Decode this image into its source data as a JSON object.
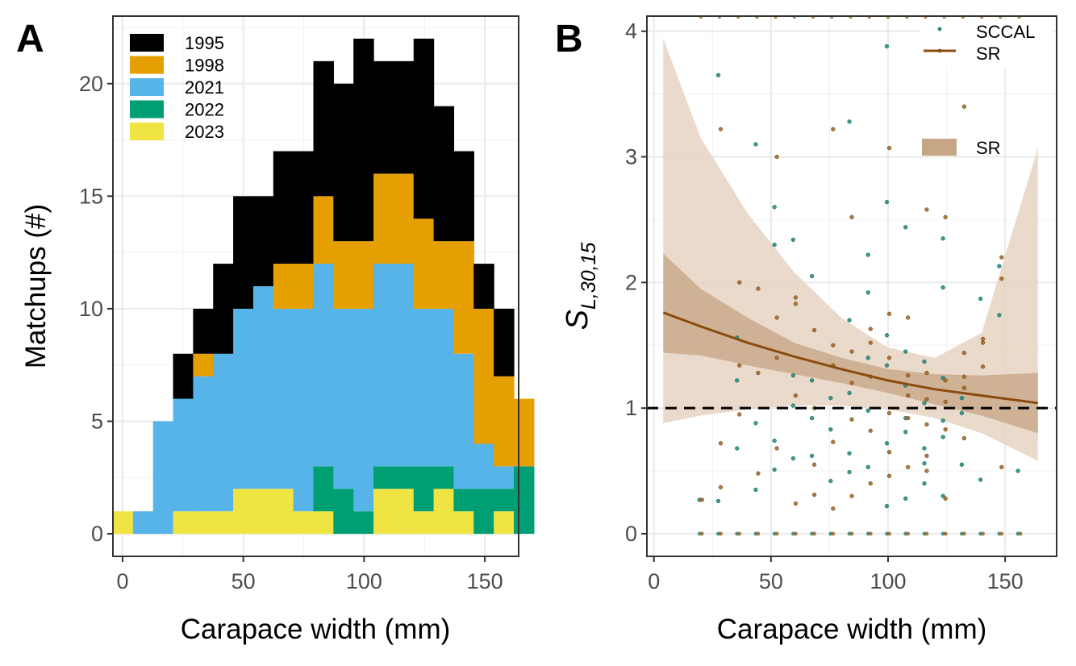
{
  "figure": {
    "colors": {
      "y1995": "#000000",
      "y1998": "#E69F00",
      "y2021": "#56B4E9",
      "y2022": "#009E73",
      "y2023": "#F0E442",
      "sccal": "#1b8a7a",
      "sr": "#a0621d",
      "sr_line": "#8b4a0e",
      "sr_band_outer": "#e6d4c2",
      "sr_band_inner": "#c3a17d",
      "grid": "#ebebeb"
    }
  },
  "chart_data": [
    {
      "panel_label": "A",
      "type": "bar",
      "stacked": true,
      "xlabel": "Carapace width (mm)",
      "ylabel": "Matchups (#)",
      "xlim": [
        -4,
        164
      ],
      "ylim": [
        -1,
        23
      ],
      "xticks": [
        0,
        50,
        100,
        150
      ],
      "yticks": [
        0,
        5,
        10,
        15,
        20
      ],
      "grid": true,
      "legend_position": "top-left",
      "bin_width": 8.3,
      "bin_start": -4,
      "series": [
        {
          "name": "2023",
          "color_key": "y2023",
          "values": [
            1,
            0,
            0,
            1,
            1,
            1,
            2,
            2,
            2,
            1,
            1,
            0,
            0,
            2,
            2,
            1,
            2,
            1,
            0,
            1,
            0
          ]
        },
        {
          "name": "2022",
          "color_key": "y2022",
          "values": [
            0,
            0,
            0,
            0,
            0,
            0,
            0,
            0,
            0,
            0,
            2,
            2,
            1,
            1,
            1,
            2,
            1,
            1,
            2,
            1,
            3
          ]
        },
        {
          "name": "2021",
          "color_key": "y2021",
          "values": [
            0,
            1,
            5,
            5,
            6,
            7,
            8,
            9,
            8,
            9,
            9,
            8,
            9,
            9,
            9,
            7,
            7,
            6,
            2,
            1,
            0
          ]
        },
        {
          "name": "1998",
          "color_key": "y1998",
          "values": [
            0,
            0,
            0,
            0,
            1,
            0,
            0,
            0,
            2,
            2,
            3,
            3,
            3,
            4,
            4,
            4,
            3,
            5,
            6,
            4,
            3
          ]
        },
        {
          "name": "1995",
          "color_key": "y1995",
          "values": [
            0,
            0,
            0,
            2,
            2,
            4,
            5,
            4,
            5,
            5,
            6,
            7,
            9,
            5,
            5,
            8,
            6,
            4,
            2,
            3,
            0
          ]
        }
      ],
      "legend": [
        "1995",
        "1998",
        "2021",
        "2022",
        "2023"
      ]
    },
    {
      "panel_label": "B",
      "type": "scatter",
      "xlabel": "Carapace width (mm)",
      "ylabel": "S",
      "ylabel_subscript": "L,30,15",
      "xlim": [
        -3,
        172
      ],
      "ylim": [
        -0.18,
        4.12
      ],
      "xticks": [
        0,
        50,
        100,
        150
      ],
      "yticks": [
        0,
        1,
        2,
        3,
        4
      ],
      "grid": true,
      "reference_line": {
        "y": 1,
        "style": "dashed"
      },
      "legend_position": "top-right",
      "legend": {
        "sccal": "SCCAL",
        "sr_line": "SR",
        "sr_band": "SR"
      },
      "sr_fit": {
        "x": [
          4,
          20,
          40,
          60,
          80,
          100,
          120,
          140,
          164
        ],
        "y": [
          1.76,
          1.65,
          1.52,
          1.41,
          1.31,
          1.22,
          1.15,
          1.1,
          1.04
        ],
        "inner_lower": [
          1.44,
          1.42,
          1.34,
          1.27,
          1.2,
          1.12,
          1.03,
          0.94,
          0.8
        ],
        "inner_upper": [
          2.23,
          1.95,
          1.72,
          1.52,
          1.4,
          1.31,
          1.27,
          1.26,
          1.28
        ],
        "outer_lower": [
          0.88,
          0.94,
          0.99,
          1.02,
          1.02,
          0.99,
          0.92,
          0.8,
          0.58
        ],
        "outer_upper": [
          3.94,
          3.15,
          2.55,
          2.08,
          1.72,
          1.48,
          1.4,
          1.6,
          3.07
        ]
      },
      "sccal_points": [
        [
          28,
          3.65
        ],
        [
          44,
          3.1
        ],
        [
          52,
          2.6
        ],
        [
          60,
          2.34
        ],
        [
          68,
          2.05
        ],
        [
          84,
          3.28
        ],
        [
          100,
          3.88
        ],
        [
          108,
          2.44
        ],
        [
          124,
          2.35
        ],
        [
          148,
          2.13
        ],
        [
          28,
          0.26
        ],
        [
          36,
          1.56
        ],
        [
          44,
          0.88
        ],
        [
          52,
          0.51
        ],
        [
          60,
          1.02
        ],
        [
          68,
          0.92
        ],
        [
          76,
          1.08
        ],
        [
          84,
          0.49
        ],
        [
          92,
          1.92
        ],
        [
          100,
          2.64
        ],
        [
          108,
          1.45
        ],
        [
          116,
          0.68
        ],
        [
          124,
          0.3
        ],
        [
          132,
          0.55
        ],
        [
          140,
          1.87
        ],
        [
          156,
          0.5
        ],
        [
          20,
          0.27
        ],
        [
          36,
          0.68
        ],
        [
          44,
          0.35
        ],
        [
          52,
          2.3
        ],
        [
          60,
          0.6
        ],
        [
          68,
          1.22
        ],
        [
          76,
          0.83
        ],
        [
          84,
          1.7
        ],
        [
          92,
          1.4
        ],
        [
          100,
          0.72
        ],
        [
          108,
          1.18
        ],
        [
          116,
          1.37
        ],
        [
          124,
          0.9
        ],
        [
          140,
          0.43
        ],
        [
          92,
          0.53
        ],
        [
          100,
          1.58
        ],
        [
          108,
          0.92
        ],
        [
          116,
          0.4
        ],
        [
          124,
          0.77
        ],
        [
          132,
          1.08
        ],
        [
          84,
          1.12
        ],
        [
          76,
          0.42
        ],
        [
          68,
          0.62
        ],
        [
          60,
          1.26
        ],
        [
          92,
          2.22
        ],
        [
          100,
          0.22
        ],
        [
          108,
          0.28
        ],
        [
          116,
          1.04
        ],
        [
          124,
          1.24
        ],
        [
          36,
          1.22
        ],
        [
          52,
          0.74
        ],
        [
          84,
          0.64
        ],
        [
          92,
          0.98
        ],
        [
          100,
          1.34
        ],
        [
          108,
          0.81
        ],
        [
          116,
          0.56
        ],
        [
          124,
          1.96
        ],
        [
          132,
          0.96
        ],
        [
          148,
          1.74
        ]
      ],
      "sr_points": [
        [
          28,
          3.22
        ],
        [
          52,
          3.0
        ],
        [
          76,
          3.22
        ],
        [
          84,
          2.52
        ],
        [
          100,
          3.07
        ],
        [
          116,
          2.58
        ],
        [
          124,
          2.52
        ],
        [
          132,
          3.4
        ],
        [
          140,
          1.55
        ],
        [
          148,
          2.03
        ],
        [
          28,
          0.72
        ],
        [
          36,
          2.0
        ],
        [
          44,
          1.95
        ],
        [
          52,
          1.72
        ],
        [
          60,
          1.88
        ],
        [
          68,
          1.62
        ],
        [
          76,
          1.5
        ],
        [
          84,
          1.45
        ],
        [
          92,
          1.63
        ],
        [
          100,
          1.75
        ],
        [
          108,
          1.72
        ],
        [
          116,
          1.28
        ],
        [
          124,
          1.22
        ],
        [
          132,
          1.44
        ],
        [
          140,
          1.33
        ],
        [
          20,
          0.27
        ],
        [
          28,
          0.37
        ],
        [
          36,
          0.95
        ],
        [
          44,
          0.48
        ],
        [
          52,
          0.68
        ],
        [
          60,
          0.24
        ],
        [
          68,
          0.55
        ],
        [
          76,
          0.73
        ],
        [
          84,
          0.91
        ],
        [
          92,
          0.82
        ],
        [
          100,
          0.65
        ],
        [
          108,
          0.92
        ],
        [
          116,
          0.62
        ],
        [
          124,
          0.83
        ],
        [
          132,
          0.76
        ],
        [
          140,
          1.52
        ],
        [
          148,
          0.53
        ],
        [
          36,
          1.34
        ],
        [
          44,
          1.28
        ],
        [
          52,
          1.4
        ],
        [
          60,
          1.1
        ],
        [
          68,
          1.0
        ],
        [
          76,
          1.34
        ],
        [
          84,
          1.2
        ],
        [
          92,
          1.25
        ],
        [
          100,
          1.4
        ],
        [
          108,
          1.26
        ],
        [
          116,
          0.87
        ],
        [
          124,
          1.05
        ],
        [
          132,
          1.16
        ],
        [
          148,
          2.2
        ],
        [
          84,
          0.3
        ],
        [
          92,
          0.4
        ],
        [
          100,
          0.46
        ],
        [
          108,
          0.53
        ],
        [
          116,
          0.5
        ],
        [
          124,
          0.28
        ],
        [
          132,
          1.25
        ],
        [
          60,
          1.83
        ],
        [
          68,
          0.31
        ],
        [
          76,
          0.2
        ],
        [
          92,
          1.52
        ],
        [
          100,
          0.96
        ],
        [
          108,
          1.1
        ],
        [
          116,
          1.07
        ]
      ],
      "zero_points_x": [
        20,
        28,
        36,
        44,
        52,
        60,
        68,
        76,
        84,
        92,
        100,
        108,
        116,
        124,
        132,
        140,
        148,
        156
      ],
      "top_points_x": [
        20,
        28,
        36,
        44,
        52,
        60,
        68,
        76,
        84,
        92,
        100,
        108,
        116,
        124,
        132,
        140,
        148,
        156
      ]
    }
  ]
}
